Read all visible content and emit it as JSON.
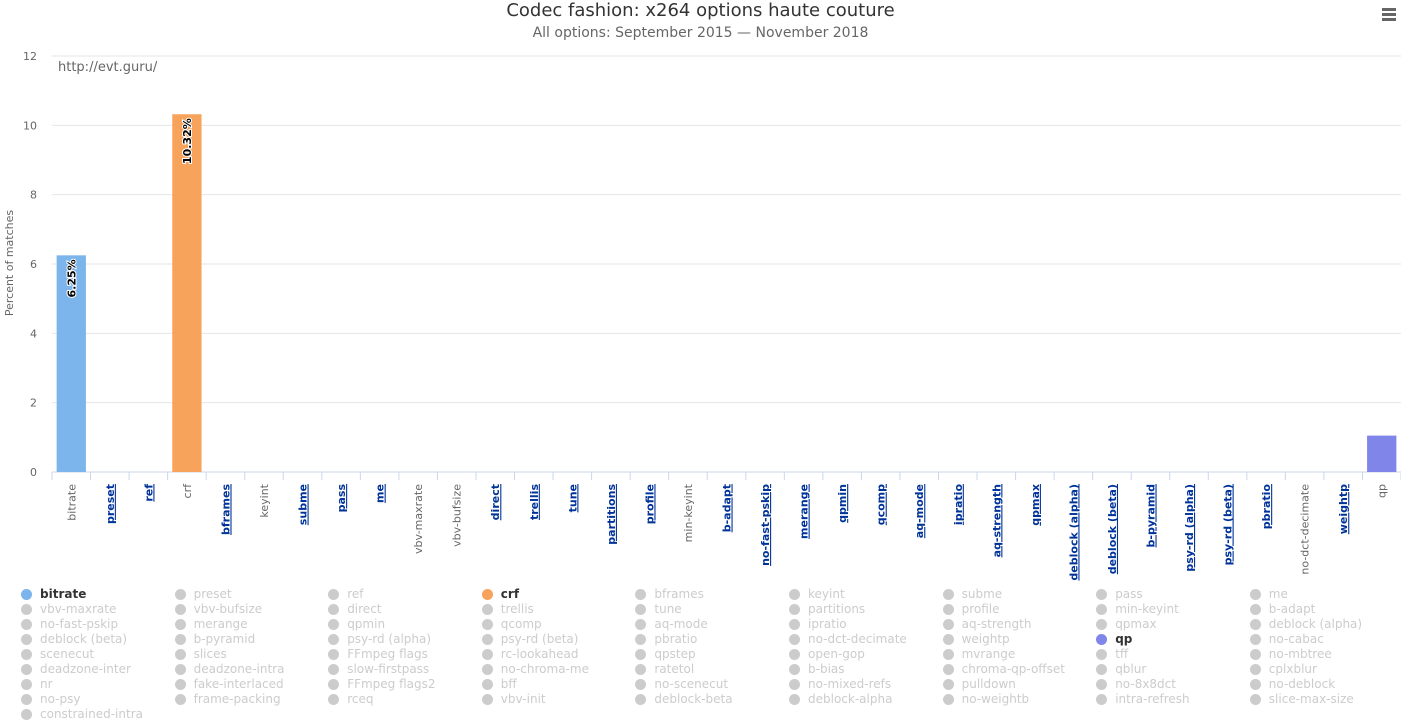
{
  "chart_data": {
    "type": "bar",
    "title": "Codec fashion: x264 options haute couture",
    "subtitle": "All options: September 2015 — November 2018",
    "credit": "http://evt.guru/",
    "ylabel": "Percent of matches",
    "ylim": [
      0,
      12
    ],
    "yticks": [
      0,
      2,
      4,
      6,
      8,
      10,
      12
    ],
    "grid": true,
    "legend_position": "bottom",
    "categories": [
      {
        "label": "bitrate",
        "link": false
      },
      {
        "label": "preset",
        "link": true
      },
      {
        "label": "ref",
        "link": true
      },
      {
        "label": "crf",
        "link": false
      },
      {
        "label": "bframes",
        "link": true
      },
      {
        "label": "keyint",
        "link": false
      },
      {
        "label": "subme",
        "link": true
      },
      {
        "label": "pass",
        "link": true
      },
      {
        "label": "me",
        "link": true
      },
      {
        "label": "vbv-maxrate",
        "link": false
      },
      {
        "label": "vbv-bufsize",
        "link": false
      },
      {
        "label": "direct",
        "link": true
      },
      {
        "label": "trellis",
        "link": true
      },
      {
        "label": "tune",
        "link": true
      },
      {
        "label": "partitions",
        "link": true
      },
      {
        "label": "profile",
        "link": true
      },
      {
        "label": "min-keyint",
        "link": false
      },
      {
        "label": "b-adapt",
        "link": true
      },
      {
        "label": "no-fast-pskip",
        "link": true
      },
      {
        "label": "merange",
        "link": true
      },
      {
        "label": "qpmin",
        "link": true
      },
      {
        "label": "qcomp",
        "link": true
      },
      {
        "label": "aq-mode",
        "link": true
      },
      {
        "label": "ipratio",
        "link": true
      },
      {
        "label": "aq-strength",
        "link": true
      },
      {
        "label": "qpmax",
        "link": true
      },
      {
        "label": "deblock (alpha)",
        "link": true
      },
      {
        "label": "deblock (beta)",
        "link": true
      },
      {
        "label": "b-pyramid",
        "link": true
      },
      {
        "label": "psy-rd (alpha)",
        "link": true
      },
      {
        "label": "psy-rd (beta)",
        "link": true
      },
      {
        "label": "pbratio",
        "link": true
      },
      {
        "label": "no-dct-decimate",
        "link": false
      },
      {
        "label": "weightp",
        "link": true
      },
      {
        "label": "qp",
        "link": false
      }
    ],
    "series": [
      {
        "name": "bitrate",
        "category": "bitrate",
        "value": 6.25,
        "label": "6.25%",
        "color": "#7cb5ec"
      },
      {
        "name": "crf",
        "category": "crf",
        "value": 10.32,
        "label": "10.32%",
        "color": "#f7a35c"
      },
      {
        "name": "qp",
        "category": "qp",
        "value": 1.05,
        "label": null,
        "color": "#8085e9"
      }
    ],
    "legend": {
      "items": [
        "bitrate",
        "preset",
        "ref",
        "crf",
        "bframes",
        "keyint",
        "subme",
        "pass",
        "me",
        "vbv-maxrate",
        "vbv-bufsize",
        "direct",
        "trellis",
        "tune",
        "partitions",
        "profile",
        "min-keyint",
        "b-adapt",
        "no-fast-pskip",
        "merange",
        "qpmin",
        "qcomp",
        "aq-mode",
        "ipratio",
        "aq-strength",
        "qpmax",
        "deblock (alpha)",
        "deblock (beta)",
        "b-pyramid",
        "psy-rd (alpha)",
        "psy-rd (beta)",
        "pbratio",
        "no-dct-decimate",
        "weightp",
        "qp",
        "no-cabac",
        "scenecut",
        "slices",
        "FFmpeg flags",
        "rc-lookahead",
        "qpstep",
        "open-gop",
        "mvrange",
        "tff",
        "no-mbtree",
        "deadzone-inter",
        "deadzone-intra",
        "slow-firstpass",
        "no-chroma-me",
        "ratetol",
        "b-bias",
        "chroma-qp-offset",
        "qblur",
        "cplxblur",
        "nr",
        "fake-interlaced",
        "FFmpeg flags2",
        "bff",
        "no-scenecut",
        "no-mixed-refs",
        "pulldown",
        "no-8x8dct",
        "no-deblock",
        "no-psy",
        "frame-packing",
        "rceq",
        "vbv-init",
        "deblock-beta",
        "deblock-alpha",
        "no-weightb",
        "intra-refresh",
        "slice-max-size",
        "constrained-intra"
      ],
      "active": [
        "bitrate",
        "crf",
        "qp"
      ],
      "inactive_color": "#cccccc",
      "columns": 9
    },
    "colors": {
      "link": "#003399",
      "tick_label": "#666666",
      "grid": "#e6e6e6"
    }
  }
}
